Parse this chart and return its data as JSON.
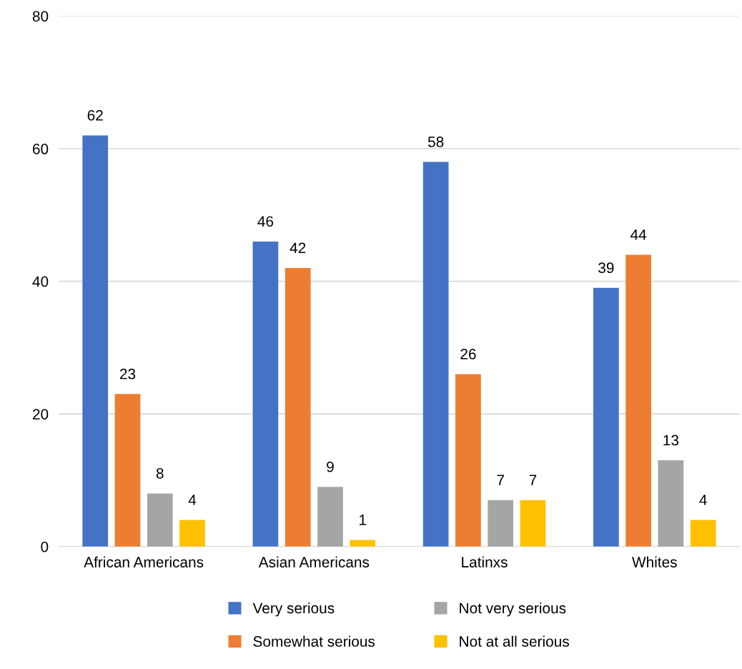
{
  "chart_data": {
    "type": "bar",
    "categories": [
      "African Americans",
      "Asian Americans",
      "Latinxs",
      "Whites"
    ],
    "series": [
      {
        "name": "Very serious",
        "color": "#4472c4",
        "values": [
          62,
          46,
          58,
          39
        ]
      },
      {
        "name": "Somewhat serious",
        "color": "#ed7d31",
        "values": [
          23,
          42,
          26,
          44
        ]
      },
      {
        "name": "Not very serious",
        "color": "#a5a5a5",
        "values": [
          8,
          9,
          7,
          13
        ]
      },
      {
        "name": "Not at all serious",
        "color": "#ffc000",
        "values": [
          4,
          1,
          7,
          4
        ]
      }
    ],
    "ylim": [
      0,
      80
    ],
    "yticks": [
      0,
      20,
      40,
      60,
      80
    ],
    "grid": "y",
    "data_labels": true,
    "legend": "bottom"
  }
}
